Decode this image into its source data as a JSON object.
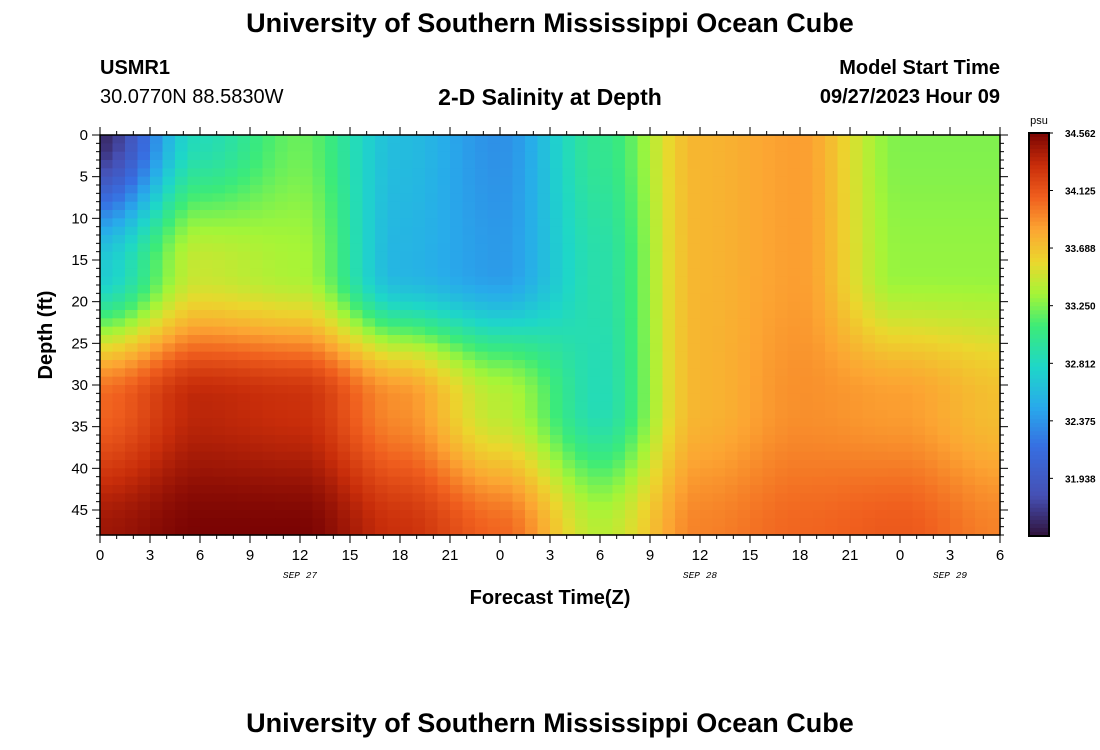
{
  "header": {
    "title": "University of Southern Mississippi Ocean Cube",
    "station": "USMR1",
    "coords": "30.0770N  88.5830W",
    "subtitle": "2-D Salinity at Depth",
    "model_start_label": "Model Start Time",
    "model_start_value": "09/27/2023 Hour 09"
  },
  "footer": {
    "title": "University of Southern Mississippi Ocean Cube"
  },
  "chart_data": {
    "type": "heatmap",
    "xlabel": "Forecast Time(Z)",
    "ylabel": "Depth (ft)",
    "x_tick_labels": [
      "0",
      "3",
      "6",
      "9",
      "12",
      "15",
      "18",
      "21",
      "0",
      "3",
      "6",
      "9",
      "12",
      "15",
      "18",
      "21",
      "0",
      "3",
      "6"
    ],
    "date_labels": [
      {
        "text": "SEP 27",
        "hour": 12
      },
      {
        "text": "SEP 28",
        "hour": 36
      },
      {
        "text": "SEP 29",
        "hour": 51
      }
    ],
    "xlim": [
      0,
      54
    ],
    "ylim": [
      0,
      48
    ],
    "y_ticks": [
      0,
      5,
      10,
      15,
      20,
      25,
      30,
      35,
      40,
      45
    ],
    "colorbar": {
      "unit": "psu",
      "min": 31.5,
      "max": 34.562,
      "labels": [
        "34.562",
        "34.125",
        "33.688",
        "33.250",
        "32.812",
        "32.375",
        "31.938"
      ],
      "label_values": [
        34.562,
        34.125,
        33.688,
        33.25,
        32.812,
        32.375,
        31.938
      ]
    },
    "salinity_grid": {
      "hours": [
        0,
        6,
        12,
        18,
        24,
        30,
        36,
        42,
        48,
        54
      ],
      "depths": [
        0,
        16,
        32,
        48
      ],
      "values": [
        [
          31.62,
          32.85,
          33.2,
          32.6,
          32.35,
          33.0,
          33.75,
          33.85,
          33.25,
          33.25
        ],
        [
          32.7,
          33.45,
          33.35,
          32.55,
          32.4,
          32.9,
          33.75,
          33.85,
          33.3,
          33.3
        ],
        [
          34.05,
          34.35,
          34.3,
          33.9,
          33.4,
          32.85,
          33.75,
          33.9,
          33.85,
          33.7
        ],
        [
          34.45,
          34.56,
          34.56,
          34.3,
          34.05,
          33.4,
          33.95,
          34.05,
          34.1,
          33.95
        ]
      ]
    }
  }
}
